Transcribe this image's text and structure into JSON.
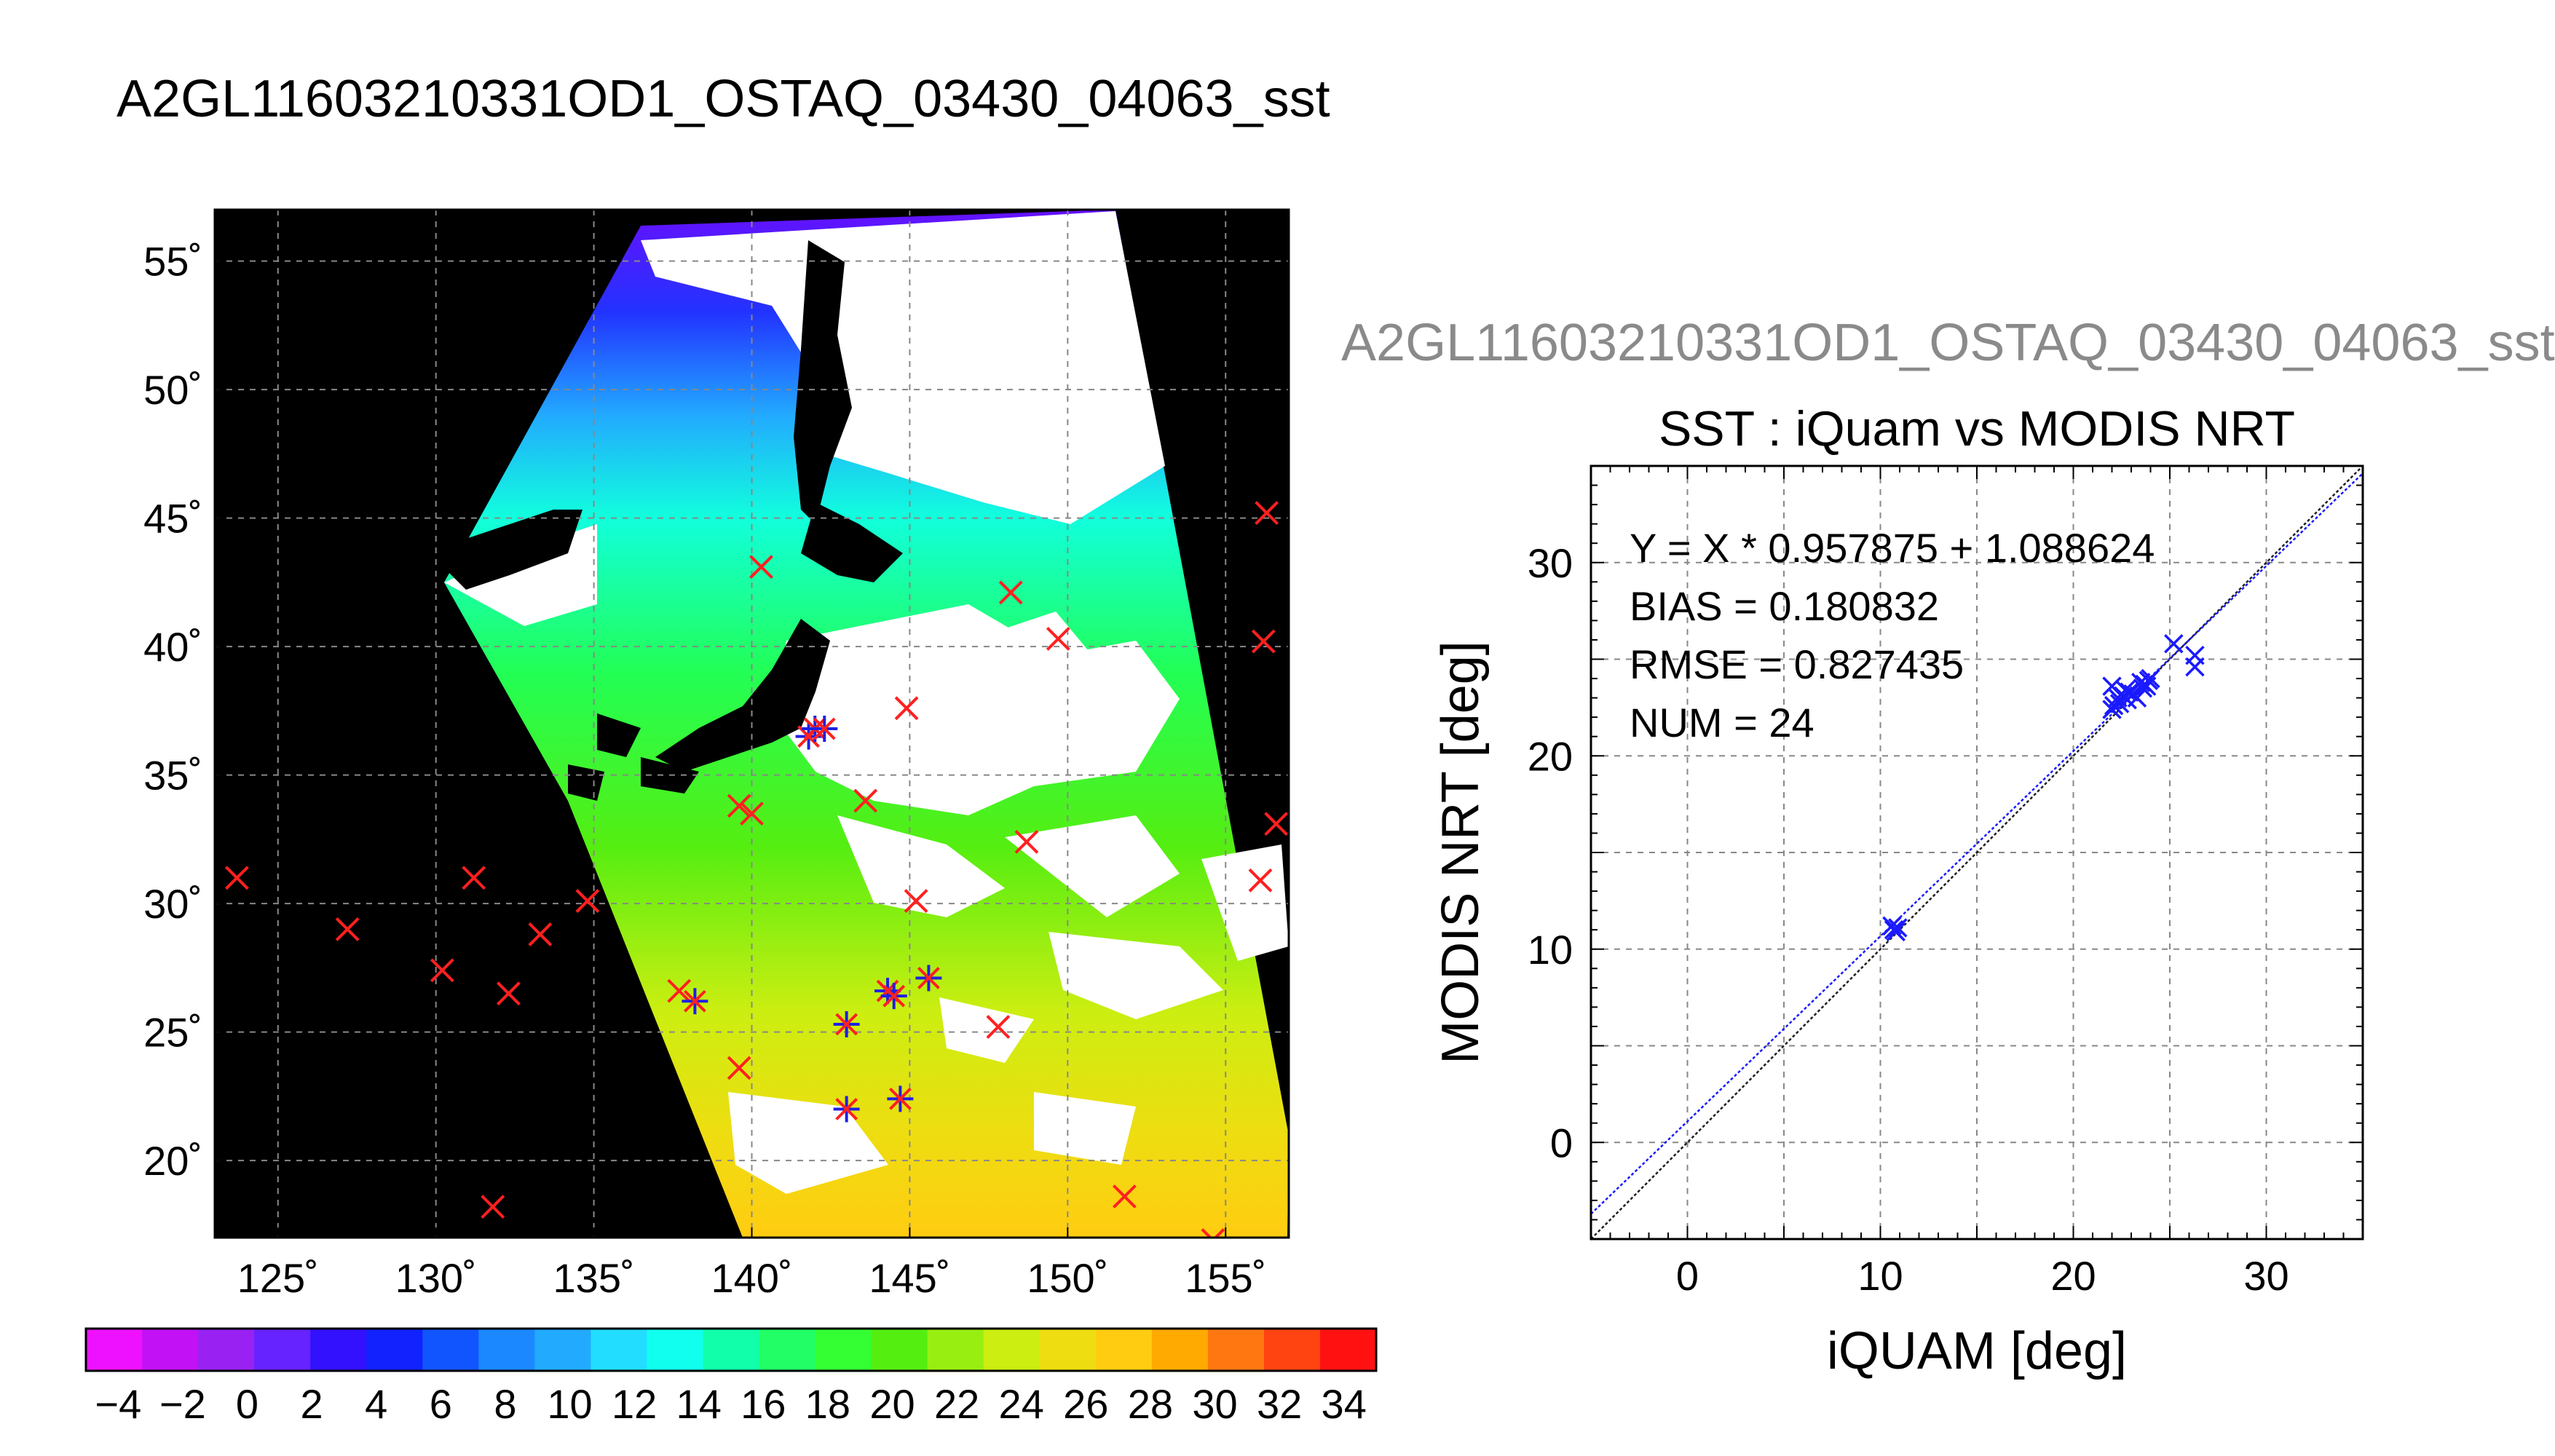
{
  "title": "A2GL11603210331OD1_OSTAQ_03430_04063_sst",
  "scatter_super_title": "A2GL11603210331OD1_OSTAQ_03430_04063_sst",
  "colors": {
    "land": "#000000",
    "cloud_gap": "#ffffff",
    "matchup_all": "#ff2020",
    "matchup_used": "#2020e0",
    "scatter_points": "#1a1aff",
    "fit_line": "#1a1aff",
    "identity_line": "#202020"
  },
  "colorbar": {
    "ticks": [
      "−4",
      "−2",
      "0",
      "2",
      "4",
      "6",
      "8",
      "10",
      "12",
      "14",
      "16",
      "18",
      "20",
      "22",
      "24",
      "26",
      "28",
      "30",
      "32",
      "34"
    ],
    "min": -5,
    "max": 35,
    "segments": [
      "#ee11ff",
      "#c311f5",
      "#9922f2",
      "#6622ff",
      "#3311ff",
      "#1122ff",
      "#1155ff",
      "#1b88ff",
      "#22aaff",
      "#22ddff",
      "#11ffee",
      "#11ffaa",
      "#22ff66",
      "#33ff33",
      "#55ee11",
      "#99ee11",
      "#ccee11",
      "#eedd11",
      "#ffcc11",
      "#ffaa00",
      "#ff7711",
      "#ff4411",
      "#ff1111"
    ]
  },
  "chart_data": [
    {
      "type": "map",
      "name": "sst_map",
      "lon_range": [
        123,
        157
      ],
      "lat_range": [
        17,
        57
      ],
      "lon_ticks": [
        125,
        130,
        135,
        140,
        145,
        150,
        155
      ],
      "lat_ticks": [
        20,
        25,
        30,
        35,
        40,
        45,
        50,
        55
      ],
      "lon_tick_labels": [
        "125˚",
        "130˚",
        "135˚",
        "140˚",
        "145˚",
        "150˚",
        "155˚"
      ],
      "lat_tick_labels": [
        "20˚",
        "25˚",
        "30˚",
        "35˚",
        "40˚",
        "45˚",
        "50˚",
        "55˚"
      ],
      "grid": true,
      "matchups_red": [
        {
          "lon": 123.7,
          "lat": 31.0
        },
        {
          "lon": 127.2,
          "lat": 29.0
        },
        {
          "lon": 130.2,
          "lat": 27.4
        },
        {
          "lon": 131.2,
          "lat": 31.0
        },
        {
          "lon": 132.3,
          "lat": 26.5
        },
        {
          "lon": 133.3,
          "lat": 28.8
        },
        {
          "lon": 134.8,
          "lat": 30.1
        },
        {
          "lon": 137.7,
          "lat": 26.6
        },
        {
          "lon": 139.6,
          "lat": 23.6
        },
        {
          "lon": 139.6,
          "lat": 33.8
        },
        {
          "lon": 140.0,
          "lat": 33.5
        },
        {
          "lon": 140.3,
          "lat": 43.1
        },
        {
          "lon": 143.6,
          "lat": 34.0
        },
        {
          "lon": 144.9,
          "lat": 37.6
        },
        {
          "lon": 145.2,
          "lat": 30.1
        },
        {
          "lon": 147.8,
          "lat": 25.2
        },
        {
          "lon": 148.2,
          "lat": 42.1
        },
        {
          "lon": 148.7,
          "lat": 32.4
        },
        {
          "lon": 149.7,
          "lat": 40.3
        },
        {
          "lon": 151.8,
          "lat": 18.6
        },
        {
          "lon": 131.8,
          "lat": 18.2
        },
        {
          "lon": 154.6,
          "lat": 16.9
        },
        {
          "lon": 156.1,
          "lat": 30.9
        },
        {
          "lon": 156.2,
          "lat": 40.2
        },
        {
          "lon": 156.3,
          "lat": 45.2
        },
        {
          "lon": 156.6,
          "lat": 33.1
        }
      ],
      "matchups_used": [
        {
          "lon": 138.2,
          "lat": 26.2
        },
        {
          "lon": 141.8,
          "lat": 36.5
        },
        {
          "lon": 142.0,
          "lat": 36.8
        },
        {
          "lon": 142.3,
          "lat": 36.8
        },
        {
          "lon": 143.0,
          "lat": 25.3
        },
        {
          "lon": 143.0,
          "lat": 22.0
        },
        {
          "lon": 144.3,
          "lat": 26.6
        },
        {
          "lon": 144.5,
          "lat": 26.4
        },
        {
          "lon": 144.7,
          "lat": 22.4
        },
        {
          "lon": 145.6,
          "lat": 27.1
        }
      ]
    },
    {
      "type": "scatter",
      "name": "iquam_vs_modis",
      "title": "SST : iQuam vs MODIS NRT",
      "xlabel": "iQUAM [deg]",
      "ylabel": "MODIS NRT [deg]",
      "xlim": [
        -5,
        35
      ],
      "ylim": [
        -5,
        35
      ],
      "ticks": [
        0,
        10,
        20,
        30
      ],
      "minor_grid_step": 5,
      "grid": true,
      "stats": [
        "Y = X * 0.957875 + 1.088624",
        "BIAS = 0.180832",
        "RMSE = 0.827435",
        "NUM = 24"
      ],
      "fit": {
        "slope": 0.957875,
        "intercept": 1.088624
      },
      "points": [
        {
          "x": 10.6,
          "y": 11.2
        },
        {
          "x": 10.8,
          "y": 10.9
        },
        {
          "x": 10.7,
          "y": 11.0
        },
        {
          "x": 22.0,
          "y": 22.4
        },
        {
          "x": 22.1,
          "y": 22.6
        },
        {
          "x": 22.0,
          "y": 23.6
        },
        {
          "x": 22.3,
          "y": 23.0
        },
        {
          "x": 22.6,
          "y": 23.1
        },
        {
          "x": 22.9,
          "y": 23.3
        },
        {
          "x": 22.8,
          "y": 22.9
        },
        {
          "x": 23.1,
          "y": 23.2
        },
        {
          "x": 23.3,
          "y": 23.0
        },
        {
          "x": 23.7,
          "y": 23.7
        },
        {
          "x": 23.9,
          "y": 23.9
        },
        {
          "x": 23.6,
          "y": 23.5
        },
        {
          "x": 24.0,
          "y": 24.0
        },
        {
          "x": 25.2,
          "y": 25.8
        },
        {
          "x": 26.3,
          "y": 25.2
        },
        {
          "x": 26.3,
          "y": 24.6
        },
        {
          "x": 10.9,
          "y": 11.1
        },
        {
          "x": 22.4,
          "y": 22.7
        },
        {
          "x": 23.5,
          "y": 23.8
        },
        {
          "x": 22.7,
          "y": 23.4
        },
        {
          "x": 23.8,
          "y": 23.6
        }
      ]
    }
  ]
}
